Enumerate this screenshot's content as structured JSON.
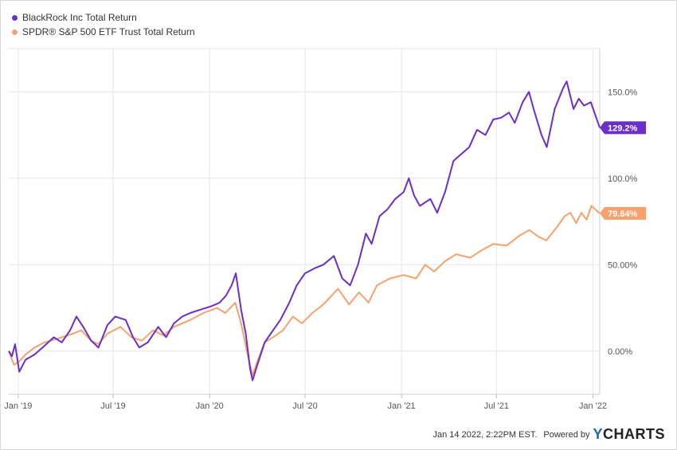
{
  "chart_data": {
    "type": "line",
    "x_start": "2018-12-14",
    "x_end": "2022-01-14",
    "ylim": [
      -25,
      175
    ],
    "yticks": [
      0,
      50,
      100,
      150
    ],
    "ytick_labels": [
      "0.00%",
      "50.00%",
      "100.0%",
      "150.0%"
    ],
    "xticks": [
      {
        "date": "2019-01-01",
        "label": "Jan '19"
      },
      {
        "date": "2019-07-01",
        "label": "Jul '19"
      },
      {
        "date": "2020-01-01",
        "label": "Jan '20"
      },
      {
        "date": "2020-07-01",
        "label": "Jul '20"
      },
      {
        "date": "2021-01-01",
        "label": "Jan '21"
      },
      {
        "date": "2021-07-01",
        "label": "Jul '21"
      },
      {
        "date": "2022-01-01",
        "label": "Jan '22"
      }
    ],
    "grid": true,
    "legend_position": "top-left",
    "series": [
      {
        "name": "BlackRock Inc Total Return",
        "color": "#6a2fc9",
        "end_label": "129.2%",
        "points": [
          [
            "2018-12-14",
            0
          ],
          [
            "2018-12-20",
            -3
          ],
          [
            "2018-12-26",
            4
          ],
          [
            "2019-01-03",
            -12
          ],
          [
            "2019-01-15",
            -5
          ],
          [
            "2019-02-01",
            -2
          ],
          [
            "2019-02-20",
            3
          ],
          [
            "2019-03-10",
            8
          ],
          [
            "2019-03-25",
            5
          ],
          [
            "2019-04-10",
            12
          ],
          [
            "2019-04-22",
            20
          ],
          [
            "2019-05-05",
            14
          ],
          [
            "2019-05-20",
            6
          ],
          [
            "2019-06-03",
            2
          ],
          [
            "2019-06-20",
            15
          ],
          [
            "2019-07-05",
            20
          ],
          [
            "2019-07-25",
            18
          ],
          [
            "2019-08-08",
            8
          ],
          [
            "2019-08-20",
            2
          ],
          [
            "2019-09-05",
            5
          ],
          [
            "2019-09-25",
            14
          ],
          [
            "2019-10-10",
            8
          ],
          [
            "2019-10-25",
            16
          ],
          [
            "2019-11-10",
            20
          ],
          [
            "2019-11-25",
            22
          ],
          [
            "2019-12-15",
            24
          ],
          [
            "2020-01-05",
            26
          ],
          [
            "2020-01-20",
            28
          ],
          [
            "2020-02-01",
            32
          ],
          [
            "2020-02-12",
            38
          ],
          [
            "2020-02-20",
            45
          ],
          [
            "2020-03-01",
            24
          ],
          [
            "2020-03-10",
            10
          ],
          [
            "2020-03-18",
            -10
          ],
          [
            "2020-03-23",
            -17
          ],
          [
            "2020-04-01",
            -8
          ],
          [
            "2020-04-15",
            5
          ],
          [
            "2020-05-01",
            12
          ],
          [
            "2020-05-15",
            18
          ],
          [
            "2020-06-01",
            28
          ],
          [
            "2020-06-15",
            38
          ],
          [
            "2020-07-01",
            45
          ],
          [
            "2020-07-20",
            48
          ],
          [
            "2020-08-05",
            50
          ],
          [
            "2020-08-25",
            55
          ],
          [
            "2020-09-10",
            42
          ],
          [
            "2020-09-25",
            38
          ],
          [
            "2020-10-10",
            50
          ],
          [
            "2020-10-25",
            68
          ],
          [
            "2020-11-05",
            62
          ],
          [
            "2020-11-20",
            78
          ],
          [
            "2020-12-05",
            82
          ],
          [
            "2020-12-20",
            88
          ],
          [
            "2021-01-05",
            92
          ],
          [
            "2021-01-15",
            100
          ],
          [
            "2021-01-25",
            90
          ],
          [
            "2021-02-05",
            84
          ],
          [
            "2021-02-25",
            88
          ],
          [
            "2021-03-10",
            80
          ],
          [
            "2021-03-25",
            92
          ],
          [
            "2021-04-10",
            110
          ],
          [
            "2021-04-25",
            114
          ],
          [
            "2021-05-10",
            118
          ],
          [
            "2021-05-25",
            128
          ],
          [
            "2021-06-10",
            125
          ],
          [
            "2021-06-25",
            134
          ],
          [
            "2021-07-10",
            135
          ],
          [
            "2021-07-25",
            138
          ],
          [
            "2021-08-05",
            132
          ],
          [
            "2021-08-20",
            144
          ],
          [
            "2021-09-01",
            150
          ],
          [
            "2021-09-10",
            140
          ],
          [
            "2021-09-25",
            125
          ],
          [
            "2021-10-05",
            118
          ],
          [
            "2021-10-20",
            140
          ],
          [
            "2021-11-05",
            152
          ],
          [
            "2021-11-12",
            156
          ],
          [
            "2021-11-25",
            140
          ],
          [
            "2021-12-05",
            146
          ],
          [
            "2021-12-15",
            142
          ],
          [
            "2021-12-28",
            144
          ],
          [
            "2022-01-05",
            137
          ],
          [
            "2022-01-14",
            129.2
          ]
        ]
      },
      {
        "name": "SPDR® S&P 500 ETF Trust Total Return",
        "color": "#f5a26f",
        "end_label": "79.64%",
        "points": [
          [
            "2018-12-14",
            0
          ],
          [
            "2018-12-24",
            -8
          ],
          [
            "2019-01-03",
            -6
          ],
          [
            "2019-01-15",
            -2
          ],
          [
            "2019-02-01",
            2
          ],
          [
            "2019-02-20",
            5
          ],
          [
            "2019-03-15",
            7
          ],
          [
            "2019-04-15",
            10
          ],
          [
            "2019-05-01",
            12
          ],
          [
            "2019-05-20",
            6
          ],
          [
            "2019-06-03",
            4
          ],
          [
            "2019-06-20",
            10
          ],
          [
            "2019-07-15",
            14
          ],
          [
            "2019-08-05",
            8
          ],
          [
            "2019-08-25",
            6
          ],
          [
            "2019-09-15",
            12
          ],
          [
            "2019-10-05",
            9
          ],
          [
            "2019-10-25",
            14
          ],
          [
            "2019-11-25",
            18
          ],
          [
            "2019-12-20",
            22
          ],
          [
            "2020-01-15",
            25
          ],
          [
            "2020-01-31",
            22
          ],
          [
            "2020-02-19",
            28
          ],
          [
            "2020-03-01",
            16
          ],
          [
            "2020-03-12",
            0
          ],
          [
            "2020-03-23",
            -14
          ],
          [
            "2020-04-01",
            -6
          ],
          [
            "2020-04-15",
            5
          ],
          [
            "2020-05-01",
            8
          ],
          [
            "2020-05-20",
            12
          ],
          [
            "2020-06-08",
            20
          ],
          [
            "2020-06-25",
            16
          ],
          [
            "2020-07-15",
            22
          ],
          [
            "2020-08-05",
            27
          ],
          [
            "2020-09-02",
            36
          ],
          [
            "2020-09-23",
            27
          ],
          [
            "2020-10-12",
            34
          ],
          [
            "2020-10-30",
            28
          ],
          [
            "2020-11-15",
            38
          ],
          [
            "2020-12-10",
            42
          ],
          [
            "2021-01-05",
            44
          ],
          [
            "2021-01-29",
            42
          ],
          [
            "2021-02-15",
            50
          ],
          [
            "2021-03-04",
            46
          ],
          [
            "2021-03-25",
            52
          ],
          [
            "2021-04-15",
            56
          ],
          [
            "2021-05-12",
            54
          ],
          [
            "2021-06-01",
            58
          ],
          [
            "2021-06-25",
            62
          ],
          [
            "2021-07-20",
            61
          ],
          [
            "2021-08-15",
            67
          ],
          [
            "2021-09-02",
            70
          ],
          [
            "2021-09-20",
            66
          ],
          [
            "2021-10-04",
            64
          ],
          [
            "2021-10-25",
            72
          ],
          [
            "2021-11-08",
            78
          ],
          [
            "2021-11-19",
            80
          ],
          [
            "2021-11-30",
            74
          ],
          [
            "2021-12-10",
            80
          ],
          [
            "2021-12-20",
            76
          ],
          [
            "2021-12-29",
            84
          ],
          [
            "2022-01-05",
            82
          ],
          [
            "2022-01-14",
            79.64
          ]
        ]
      }
    ]
  },
  "footer": {
    "timestamp": "Jan 14 2022, 2:22PM EST.",
    "powered_by": "Powered by",
    "logo_y": "Y",
    "logo_rest": "CHARTS"
  }
}
